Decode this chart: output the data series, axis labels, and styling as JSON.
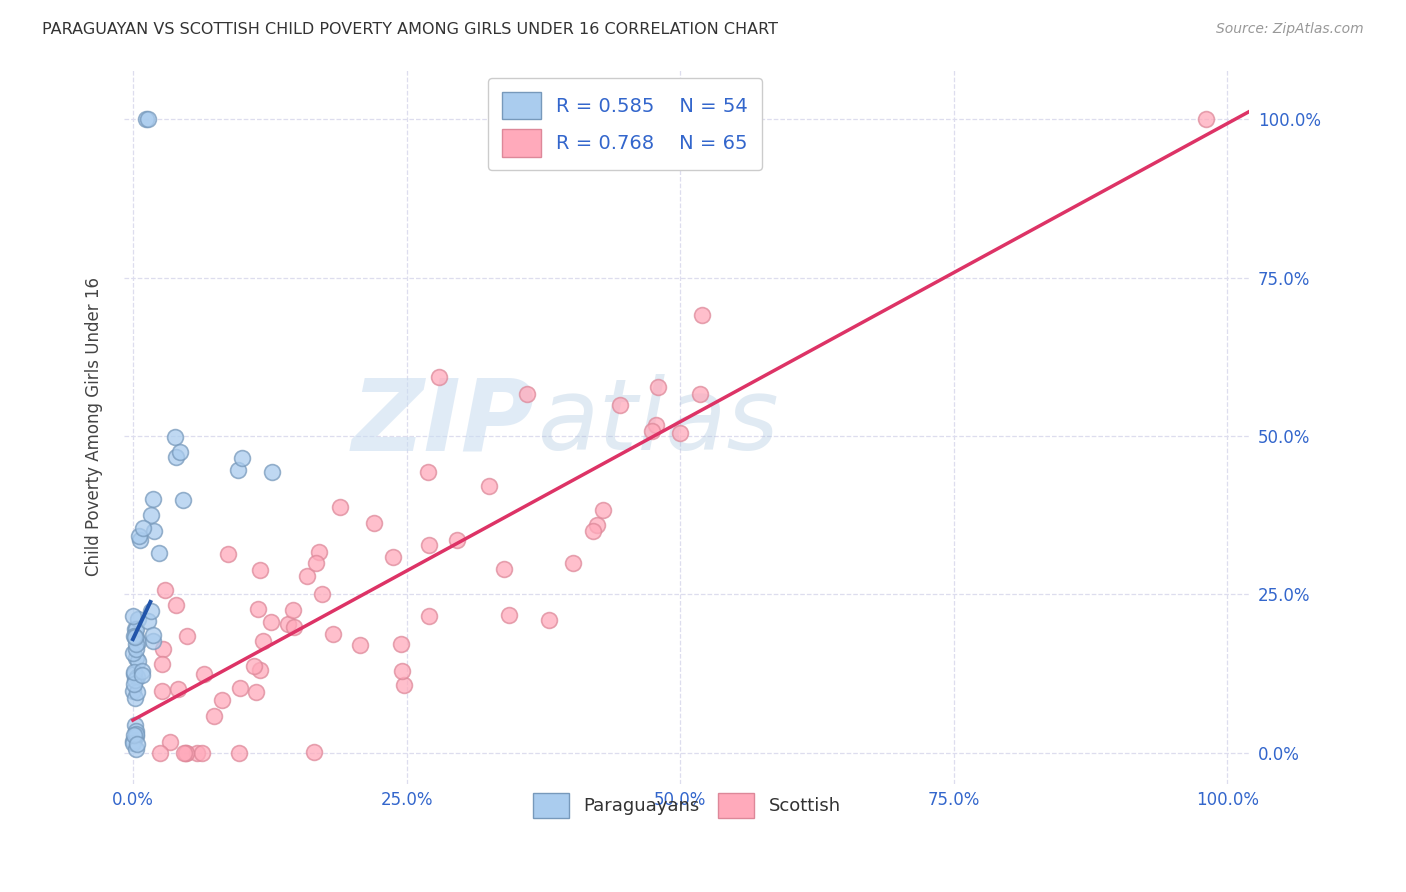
{
  "title": "PARAGUAYAN VS SCOTTISH CHILD POVERTY AMONG GIRLS UNDER 16 CORRELATION CHART",
  "source": "Source: ZipAtlas.com",
  "ylabel": "Child Poverty Among Girls Under 16",
  "watermark_zip": "ZIP",
  "watermark_atlas": "atlas",
  "paraguayan_R": 0.585,
  "paraguayan_N": 54,
  "scottish_R": 0.768,
  "scottish_N": 65,
  "blue_scatter_face": "#AACCEE",
  "blue_scatter_edge": "#7799BB",
  "pink_scatter_face": "#FFAABB",
  "pink_scatter_edge": "#DD8899",
  "blue_line_solid": "#2255AA",
  "blue_line_dash": "#88AACC",
  "pink_line": "#DD3366",
  "legend_label_color": "#3366CC",
  "axis_tick_color": "#3366CC",
  "title_color": "#333333",
  "source_color": "#999999",
  "grid_color": "#DDDDEE",
  "ytick_labels": [
    "0.0%",
    "25.0%",
    "50.0%",
    "75.0%",
    "100.0%"
  ],
  "ytick_vals": [
    0.0,
    0.25,
    0.5,
    0.75,
    1.0
  ],
  "xtick_labels": [
    "0.0%",
    "25.0%",
    "50.0%",
    "75.0%",
    "100.0%"
  ],
  "xtick_vals": [
    0.0,
    0.25,
    0.5,
    0.75,
    1.0
  ],
  "bottom_legend_labels": [
    "Paraguayans",
    "Scottish"
  ]
}
